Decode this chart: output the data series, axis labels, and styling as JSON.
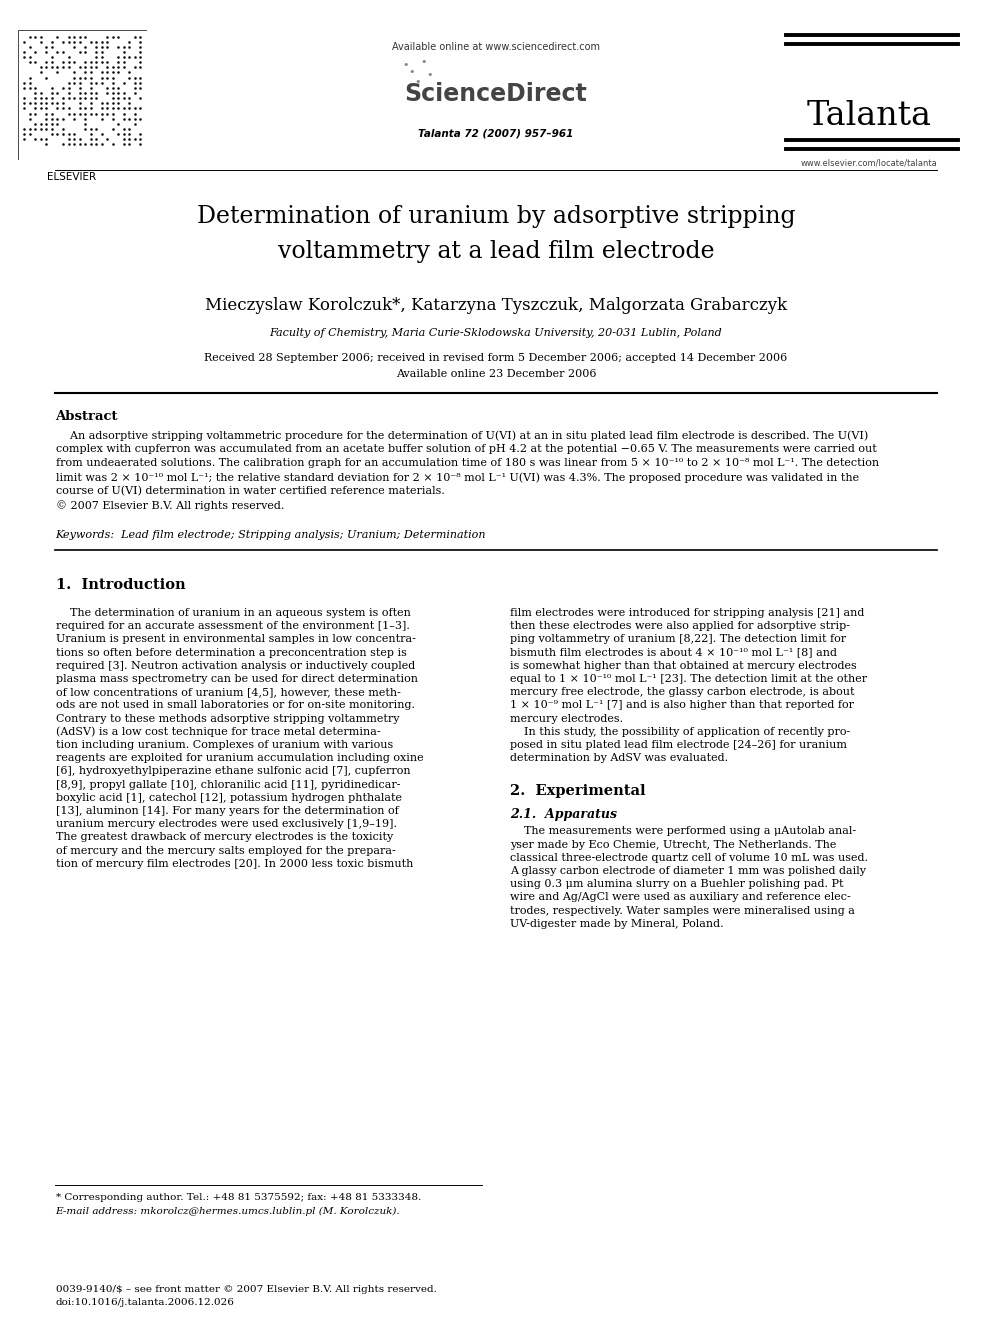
{
  "title_line1": "Determination of uranium by adsorptive stripping",
  "title_line2": "voltammetry at a lead film electrode",
  "authors": "Mieczyslaw Korolczuk*, Katarzyna Tyszczuk, Malgorzata Grabarczyk",
  "affiliation": "Faculty of Chemistry, Maria Curie-Sklodowska University, 20-031 Lublin, Poland",
  "received": "Received 28 September 2006; received in revised form 5 December 2006; accepted 14 December 2006",
  "available_online_date": "Available online 23 December 2006",
  "journal_info": "Talanta 72 (2007) 957–961",
  "available_online_header": "Available online at www.sciencedirect.com",
  "sciencedirect": "ScienceDirect",
  "talanta": "Talanta",
  "www": "www.elsevier.com/locate/talanta",
  "elsevier": "ELSEVIER",
  "abstract_title": "Abstract",
  "keywords": "Keywords:  Lead film electrode; Stripping analysis; Uranium; Determination",
  "section1_title": "1.  Introduction",
  "section2_title": "2.  Experimental",
  "section2_sub": "2.1.  Apparatus",
  "footnote1": "* Corresponding author. Tel.: +48 81 5375592; fax: +48 81 5333348.",
  "footnote2": "E-mail address: mkorolcz@hermes.umcs.lublin.pl (M. Korolczuk).",
  "footer1": "0039-9140/$ – see front matter © 2007 Elsevier B.V. All rights reserved.",
  "footer2": "doi:10.1016/j.talanta.2006.12.026",
  "bg_color": "#ffffff"
}
